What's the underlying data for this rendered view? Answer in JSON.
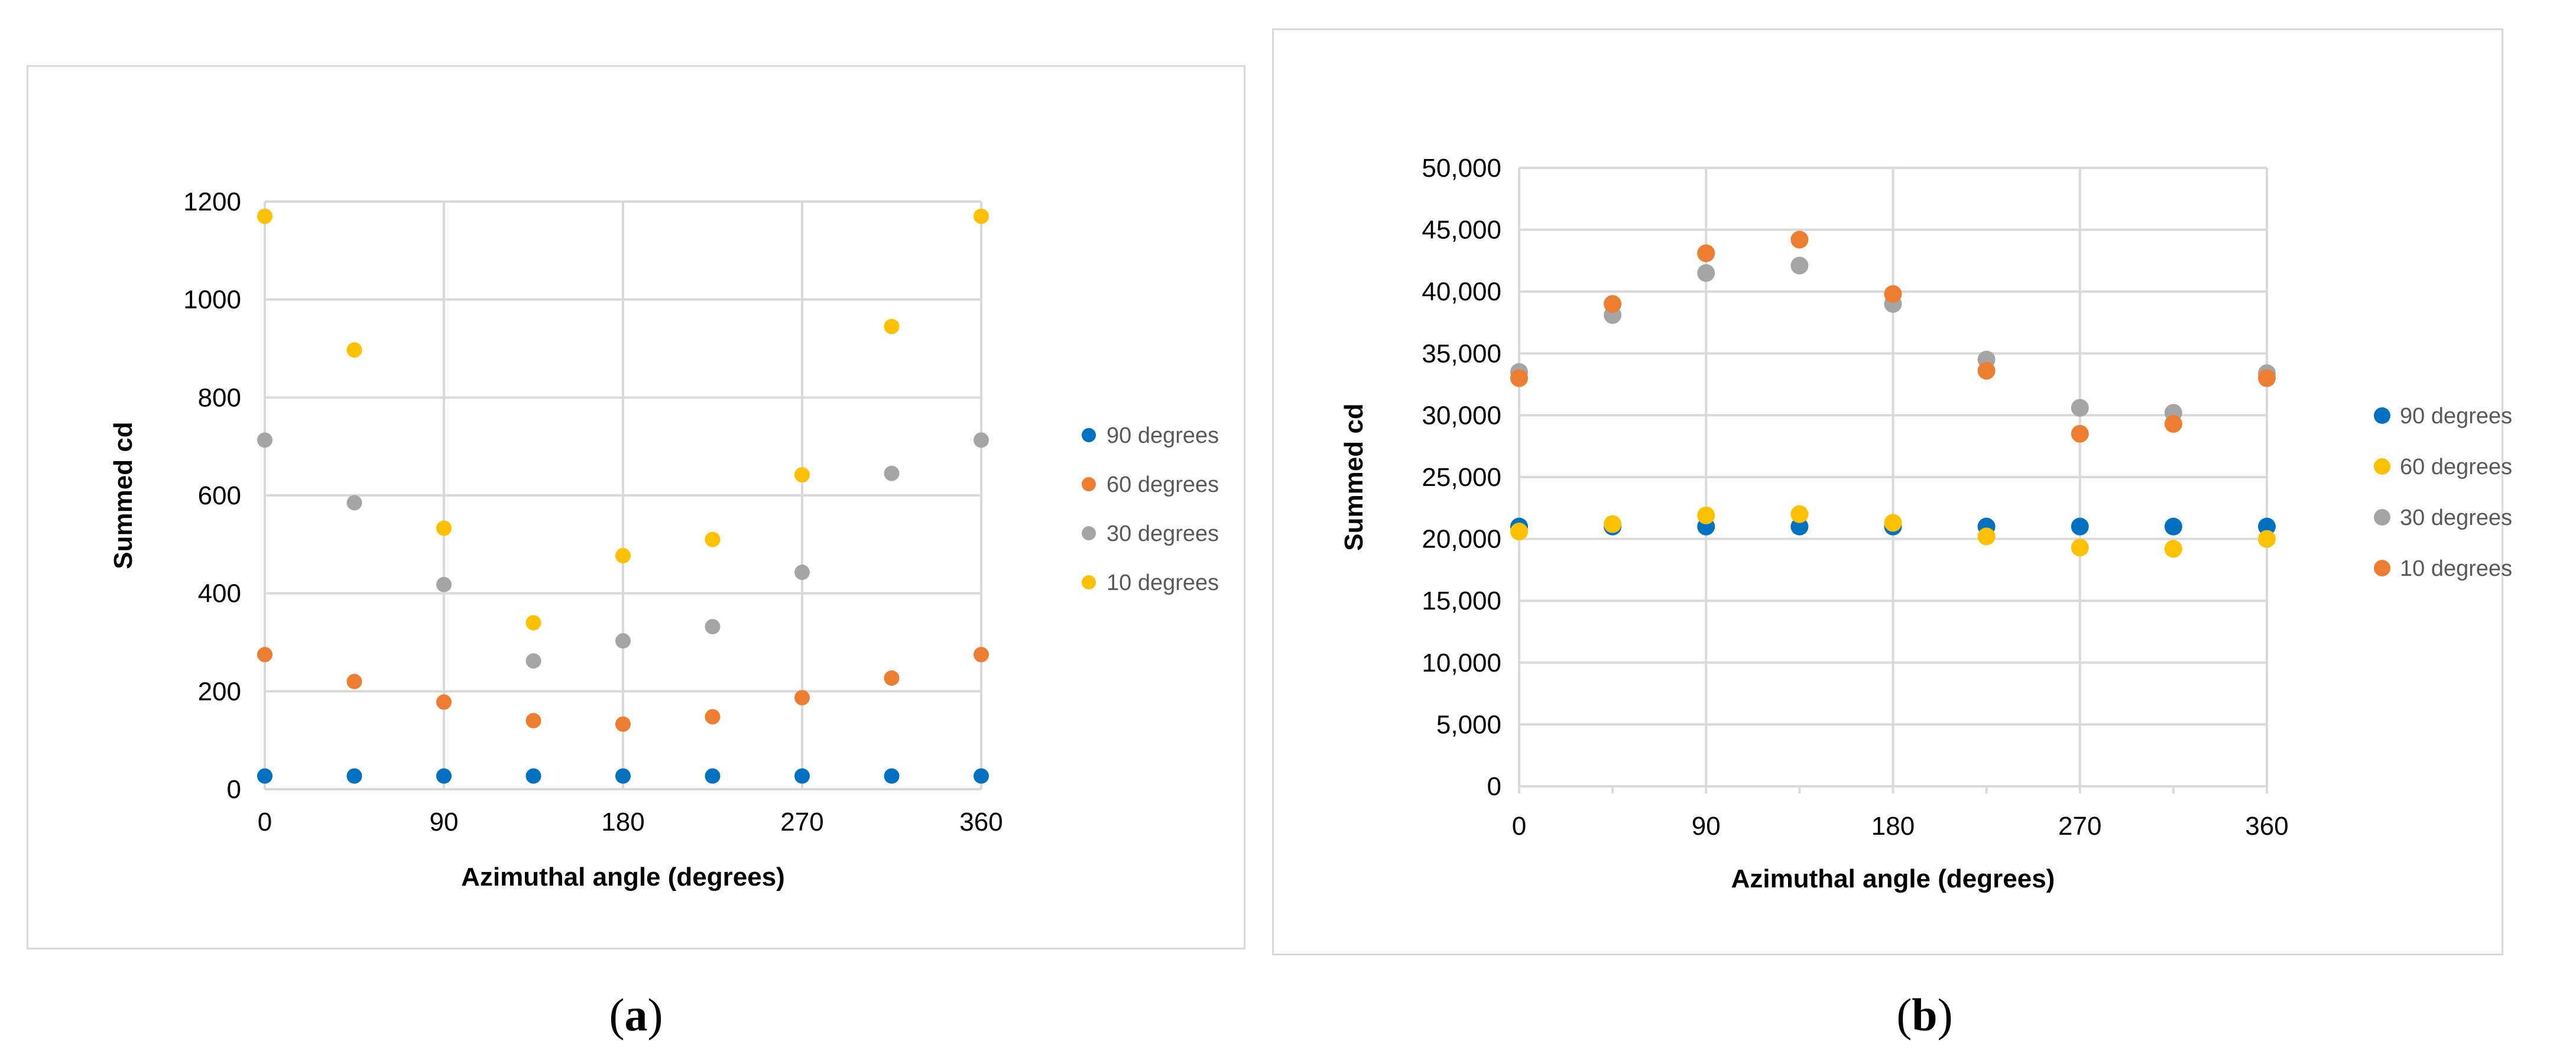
{
  "colors": {
    "blue": "#0070c0",
    "orange": "#ed7d31",
    "gray": "#a5a5a5",
    "yellow": "#ffc000",
    "grid": "#d9d9d9",
    "border": "#d9d9d9"
  },
  "chart_data": [
    {
      "type": "scatter",
      "panel": "a",
      "xlabel": "Azimuthal angle (degrees)",
      "ylabel": "Summed cd",
      "xlim": [
        0,
        360
      ],
      "ylim": [
        0,
        1200
      ],
      "xticks": [
        0,
        90,
        180,
        270,
        360
      ],
      "xtick_labels": [
        "0",
        "90",
        "180",
        "270",
        "360"
      ],
      "yticks": [
        0,
        200,
        400,
        600,
        800,
        1000,
        1200
      ],
      "ytick_labels": [
        "0",
        "200",
        "400",
        "600",
        "800",
        "1000",
        "1200"
      ],
      "grid": "major",
      "legend_position": "right",
      "x": [
        0,
        45,
        90,
        135,
        180,
        225,
        270,
        315,
        360
      ],
      "series": [
        {
          "name": "90 degrees",
          "color": "#0070c0",
          "values": [
            27,
            27,
            27,
            27,
            27,
            27,
            27,
            27,
            27
          ]
        },
        {
          "name": "60 degrees",
          "color": "#ed7d31",
          "values": [
            275,
            220,
            178,
            140,
            133,
            148,
            187,
            227,
            275
          ]
        },
        {
          "name": "30 degrees",
          "color": "#a5a5a5",
          "values": [
            713,
            585,
            418,
            262,
            303,
            332,
            443,
            645,
            713
          ]
        },
        {
          "name": "10 degrees",
          "color": "#ffc000",
          "values": [
            1170,
            897,
            533,
            340,
            477,
            510,
            642,
            945,
            1170
          ]
        }
      ]
    },
    {
      "type": "scatter",
      "panel": "b",
      "xlabel": "Azimuthal angle (degrees)",
      "ylabel": "Summed cd",
      "xlim": [
        0,
        360
      ],
      "ylim": [
        0,
        50000
      ],
      "xticks": [
        0,
        90,
        180,
        270,
        360
      ],
      "xtick_labels": [
        "0",
        "90",
        "180",
        "270",
        "360"
      ],
      "yticks": [
        0,
        5000,
        10000,
        15000,
        20000,
        25000,
        30000,
        35000,
        40000,
        45000,
        50000
      ],
      "ytick_labels": [
        "0",
        "5,000",
        "10,000",
        "15,000",
        "20,000",
        "25,000",
        "30,000",
        "35,000",
        "40,000",
        "45,000",
        "50,000"
      ],
      "grid": "major",
      "legend_position": "right",
      "x": [
        0,
        45,
        90,
        135,
        180,
        225,
        270,
        315,
        360
      ],
      "series": [
        {
          "name": "90 degrees",
          "color": "#0070c0",
          "values": [
            21000,
            21000,
            21000,
            21000,
            21000,
            21000,
            21000,
            21000,
            21000
          ]
        },
        {
          "name": "60 degrees",
          "color": "#ffc000",
          "values": [
            20600,
            21200,
            21900,
            22000,
            21300,
            20200,
            19300,
            19200,
            20000
          ]
        },
        {
          "name": "30 degrees",
          "color": "#a5a5a5",
          "values": [
            33500,
            38100,
            41500,
            42100,
            39000,
            34500,
            30600,
            30200,
            33400
          ]
        },
        {
          "name": "10 degrees",
          "color": "#ed7d31",
          "values": [
            33000,
            39000,
            43100,
            44200,
            39800,
            33600,
            28500,
            29300,
            33000
          ]
        }
      ]
    }
  ],
  "captions": {
    "a": {
      "open": "(",
      "label": "a",
      "close": ")"
    },
    "b": {
      "open": "(",
      "label": "b",
      "close": ")"
    }
  }
}
